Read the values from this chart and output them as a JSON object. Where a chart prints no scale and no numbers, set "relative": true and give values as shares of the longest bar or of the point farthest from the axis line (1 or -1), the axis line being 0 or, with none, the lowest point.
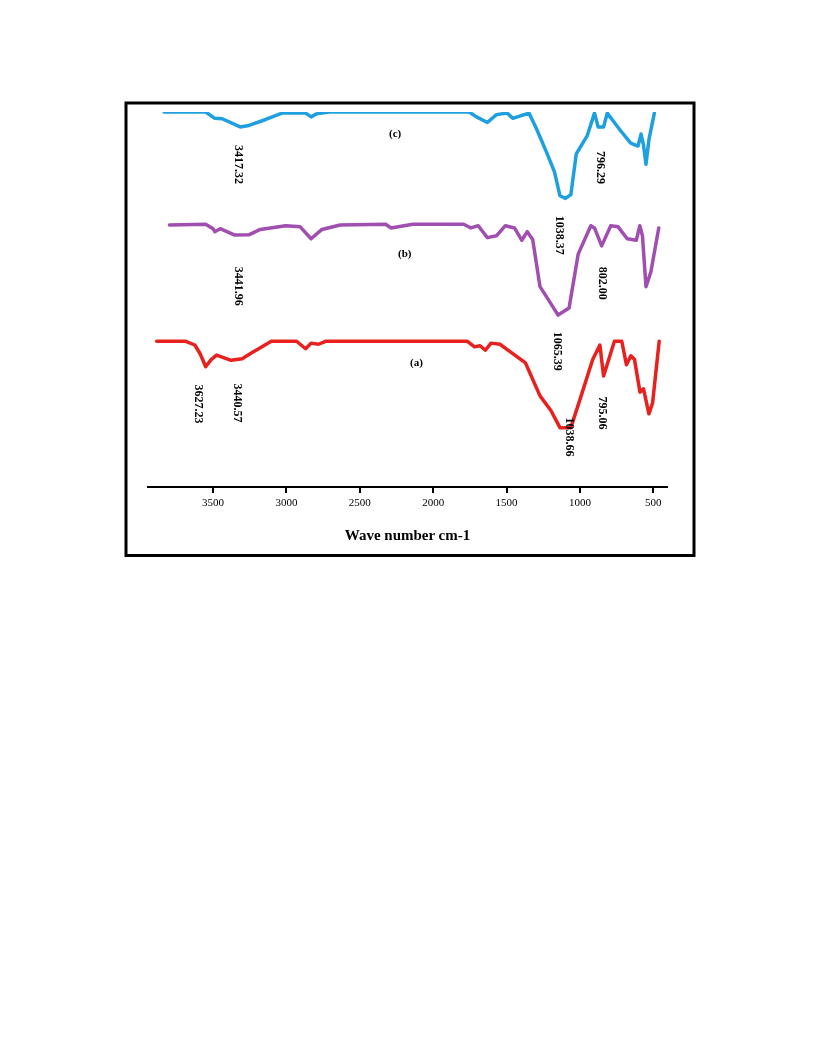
{
  "chart_data": {
    "type": "line",
    "relative": true,
    "xlabel": "Wave number cm-1",
    "xlim": [
      3950,
      400
    ],
    "xticks": [
      3500,
      3000,
      2500,
      2000,
      1500,
      1000,
      500
    ],
    "marker": "none",
    "line_style": "solid",
    "series": [
      {
        "color": "#1ea0e0",
        "x": [
          3834,
          3550,
          3488,
          3438,
          3315,
          3265,
          3141,
          3030,
          2869,
          2832,
          2795,
          2708,
          1755,
          1705,
          1631,
          1569,
          1495,
          1458,
          1347,
          1297,
          1223,
          1173,
          1136,
          1099,
          1062,
          1025,
          951,
          901,
          876,
          839,
          814,
          715,
          654,
          604,
          584,
          567,
          550,
          530,
          493
        ],
        "values": [
          1.0,
          1.0,
          0.983,
          0.982,
          0.96,
          0.963,
          0.98,
          0.997,
          0.997,
          0.987,
          0.995,
          1.0,
          1.0,
          0.987,
          0.972,
          0.993,
          0.997,
          0.983,
          0.997,
          0.956,
          0.888,
          0.839,
          0.776,
          0.769,
          0.779,
          0.888,
          0.936,
          0.997,
          0.96,
          0.96,
          0.997,
          0.946,
          0.917,
          0.909,
          0.941,
          0.912,
          0.86,
          0.926,
          0.997
        ]
      },
      {
        "color": "#a04eb0",
        "x": [
          3797,
          3550,
          3500,
          3488,
          3451,
          3352,
          3253,
          3178,
          3005,
          2906,
          2832,
          2758,
          2634,
          2324,
          2287,
          2139,
          1792,
          1743,
          1693,
          1631,
          1569,
          1508,
          1446,
          1396,
          1359,
          1322,
          1272,
          1223,
          1149,
          1074,
          1012,
          926,
          901,
          852,
          790,
          740,
          678,
          616,
          592,
          574,
          550,
          517,
          463
        ],
        "values": [
          0.698,
          0.7,
          0.688,
          0.68,
          0.688,
          0.671,
          0.672,
          0.686,
          0.696,
          0.693,
          0.661,
          0.686,
          0.698,
          0.7,
          0.69,
          0.7,
          0.7,
          0.69,
          0.696,
          0.664,
          0.669,
          0.696,
          0.69,
          0.657,
          0.68,
          0.659,
          0.533,
          0.503,
          0.457,
          0.476,
          0.62,
          0.696,
          0.69,
          0.642,
          0.696,
          0.693,
          0.661,
          0.657,
          0.696,
          0.669,
          0.533,
          0.572,
          0.69
        ]
      },
      {
        "color": "#e8201e",
        "x": [
          3884,
          3686,
          3624,
          3587,
          3550,
          3513,
          3476,
          3377,
          3302,
          3228,
          3103,
          2931,
          2869,
          2832,
          2782,
          2733,
          1767,
          1718,
          1681,
          1644,
          1606,
          1545,
          1371,
          1272,
          1198,
          1136,
          1062,
          1000,
          913,
          864,
          839,
          765,
          715,
          683,
          653,
          628,
          591,
          567,
          530,
          505,
          460
        ],
        "values": [
          0.387,
          0.387,
          0.377,
          0.353,
          0.319,
          0.338,
          0.35,
          0.336,
          0.34,
          0.358,
          0.387,
          0.387,
          0.367,
          0.382,
          0.379,
          0.387,
          0.387,
          0.372,
          0.375,
          0.363,
          0.382,
          0.379,
          0.329,
          0.241,
          0.202,
          0.156,
          0.156,
          0.231,
          0.338,
          0.377,
          0.294,
          0.387,
          0.387,
          0.324,
          0.348,
          0.338,
          0.251,
          0.26,
          0.193,
          0.222,
          0.387
        ]
      }
    ],
    "annotations": [
      "(c)",
      "3417.32",
      "796.29",
      "1038.37",
      "(b)",
      "3441.96",
      "802.00",
      "1065.39",
      "(a)",
      "3627.23",
      "3440.57",
      "795.06",
      "1038.66"
    ]
  }
}
